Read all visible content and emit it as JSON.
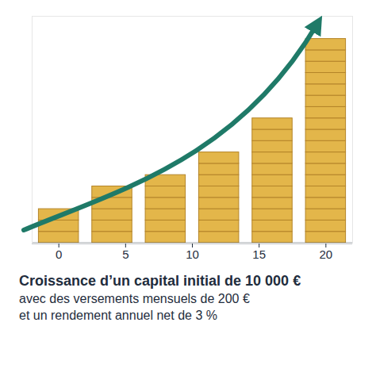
{
  "chart_data": {
    "type": "bar",
    "title": "Croissance d’un capital initial de 10 000 €",
    "subtitle": [
      "avec des versements mensuels de 200 €",
      "et un rendement annuel net de 3 %"
    ],
    "x": [
      0,
      4,
      8,
      12,
      16,
      20
    ],
    "values": [
      3,
      5,
      6,
      8,
      11,
      18
    ],
    "color": "#e3b64a",
    "xlim": [
      -2,
      22
    ],
    "xticks": [
      0,
      5,
      10,
      15,
      20
    ],
    "ylim": [
      0,
      20
    ],
    "tick_labels": "x",
    "grid": false
  }
}
